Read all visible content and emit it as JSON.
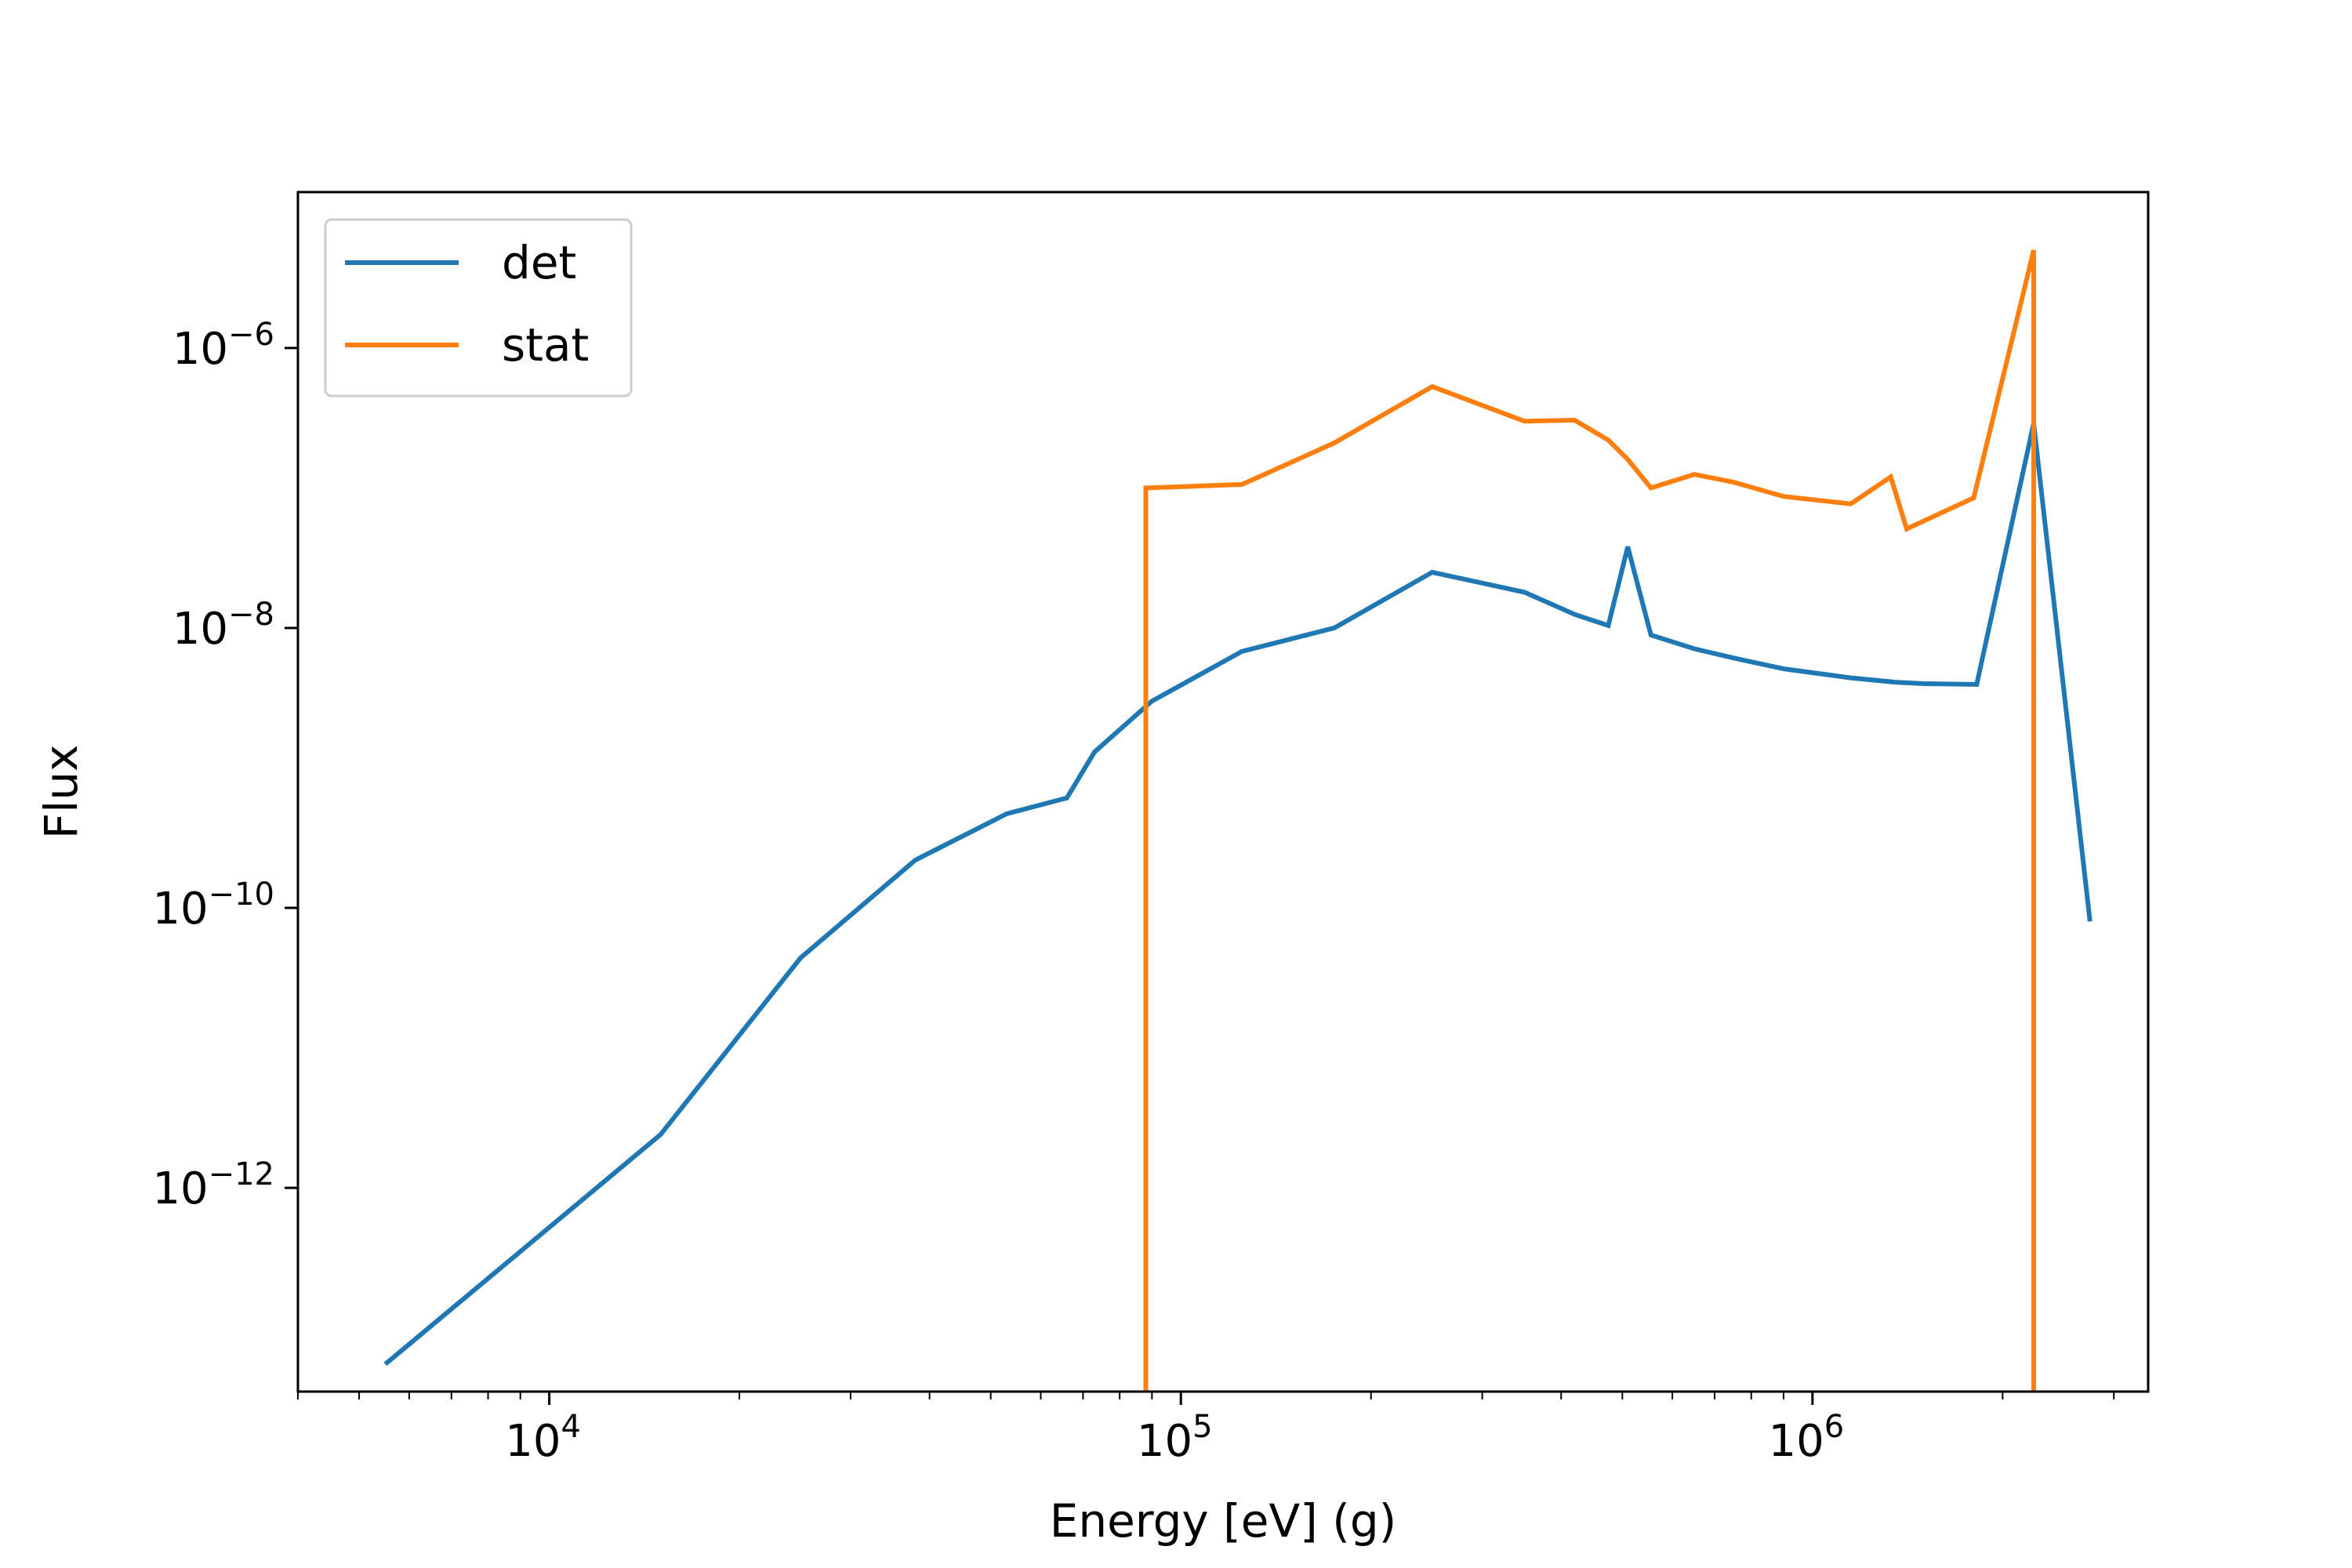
{
  "chart_data": {
    "type": "line",
    "title": "",
    "xlabel": "Energy [eV] (g)",
    "ylabel": "Flux",
    "xscale": "log",
    "yscale": "log",
    "xlim": [
      4000,
      3400000
    ],
    "ylim": [
      3.5e-14,
      1.3e-05
    ],
    "xticks": [
      {
        "value": 10000,
        "base": "10",
        "exp": "4"
      },
      {
        "value": 100000,
        "base": "10",
        "exp": "5"
      },
      {
        "value": 1000000,
        "base": "10",
        "exp": "6"
      }
    ],
    "yticks": [
      {
        "value": 1e-12,
        "base": "10",
        "exp": "−12"
      },
      {
        "value": 1e-10,
        "base": "10",
        "exp": "−10"
      },
      {
        "value": 1e-08,
        "base": "10",
        "exp": "−8"
      },
      {
        "value": 1e-06,
        "base": "10",
        "exp": "−6"
      }
    ],
    "grid": false,
    "legend_position": "upper-left",
    "series": [
      {
        "name": "det",
        "color": "#1f77b4",
        "points": [
          [
            5500,
            5.5e-14
          ],
          [
            15000,
            2.4e-12
          ],
          [
            25000,
            4.4e-11
          ],
          [
            38000,
            2.2e-10
          ],
          [
            53000,
            4.7e-10
          ],
          [
            66000,
            6.1e-10
          ],
          [
            73000,
            1.3e-09
          ],
          [
            90000,
            3e-09
          ],
          [
            125000,
            6.8e-09
          ],
          [
            175000,
            1e-08
          ],
          [
            250000,
            2.5e-08
          ],
          [
            350000,
            1.8e-08
          ],
          [
            420000,
            1.25e-08
          ],
          [
            475000,
            1.04e-08
          ],
          [
            510000,
            3.8e-08
          ],
          [
            555000,
            8.9e-09
          ],
          [
            650000,
            7.1e-09
          ],
          [
            750000,
            6.1e-09
          ],
          [
            900000,
            5.1e-09
          ],
          [
            1150000,
            4.4e-09
          ],
          [
            1350000,
            4.1e-09
          ],
          [
            1500000,
            4e-09
          ],
          [
            1820000,
            3.95e-09
          ],
          [
            2240000,
            2.9e-07
          ],
          [
            2750000,
            8e-11
          ]
        ]
      },
      {
        "name": "stat",
        "color": "#ff7f0e",
        "points": [
          [
            88000,
            3.5e-14
          ],
          [
            88000,
            1e-07
          ],
          [
            125000,
            1.06e-07
          ],
          [
            175000,
            2.1e-07
          ],
          [
            250000,
            5.3e-07
          ],
          [
            350000,
            3e-07
          ],
          [
            420000,
            3.05e-07
          ],
          [
            475000,
            2.2e-07
          ],
          [
            510000,
            1.6e-07
          ],
          [
            555000,
            1e-07
          ],
          [
            650000,
            1.25e-07
          ],
          [
            750000,
            1.1e-07
          ],
          [
            900000,
            8.7e-08
          ],
          [
            1150000,
            7.7e-08
          ],
          [
            1330000,
            1.2e-07
          ],
          [
            1410000,
            5.1e-08
          ],
          [
            1800000,
            8.5e-08
          ],
          [
            2240000,
            5e-06
          ],
          [
            2240000,
            3.5e-14
          ]
        ]
      }
    ]
  }
}
